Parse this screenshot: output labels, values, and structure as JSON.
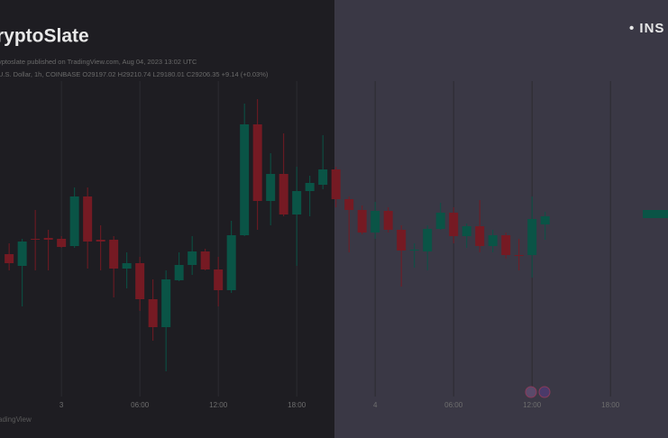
{
  "chart_data": {
    "type": "candlestick",
    "title": "ryptoSlate",
    "subtitle": "yptoslate published on TradingView.com, Aug 04, 2023 13:02 UTC",
    "symbol_info": "U.S. Dollar, 1h, COINBASE O29197.02 H29210.74 L29180.01 C29206.35 +9.14 (+0.03%)",
    "corner_text": "• INS",
    "watermark": "adingView",
    "x": [
      -4,
      -3,
      -2,
      -1,
      0,
      1,
      2,
      3,
      4,
      5,
      6,
      7,
      8,
      9,
      10,
      11,
      12,
      13,
      14,
      15,
      16,
      17,
      18,
      19,
      20,
      21,
      22,
      23,
      24,
      25,
      26,
      27,
      28,
      29,
      30,
      31,
      32,
      33,
      34,
      35,
      36,
      37
    ],
    "open": [
      29164,
      29151,
      29181,
      29182,
      29181,
      29173,
      29228,
      29180,
      29180,
      29148,
      29154,
      29114,
      29083,
      29135,
      29152,
      29167,
      29147,
      29124,
      29185,
      29308,
      29223,
      29253,
      29208,
      29234,
      29241,
      29258,
      29225,
      29213,
      29188,
      29212,
      29191,
      29168,
      29167,
      29192,
      29210,
      29184,
      29195,
      29173,
      29185,
      29163,
      29163,
      29197
    ],
    "high": [
      29176,
      29181,
      29213,
      29191,
      29184,
      29238,
      29238,
      29196,
      29184,
      29166,
      29161,
      29136,
      29146,
      29166,
      29184,
      29170,
      29161,
      29201,
      29331,
      29336,
      29276,
      29298,
      29261,
      29251,
      29296,
      29261,
      29228,
      29218,
      29222,
      29216,
      29196,
      29176,
      29196,
      29221,
      29216,
      29198,
      29224,
      29191,
      29188,
      29181,
      29228,
      29211
    ],
    "low": [
      29146,
      29106,
      29146,
      29146,
      29171,
      29171,
      29148,
      29146,
      29116,
      29126,
      29101,
      29068,
      29034,
      29134,
      29141,
      29146,
      29106,
      29121,
      29184,
      29191,
      29196,
      29206,
      29151,
      29206,
      29236,
      29216,
      29166,
      29186,
      29181,
      29188,
      29128,
      29149,
      29146,
      29191,
      29176,
      29171,
      29166,
      29166,
      29159,
      29146,
      29138,
      29180
    ],
    "close": [
      29154,
      29178,
      29180,
      29180,
      29172,
      29228,
      29178,
      29178,
      29148,
      29154,
      29114,
      29083,
      29136,
      29152,
      29167,
      29147,
      29124,
      29185,
      29308,
      29223,
      29253,
      29208,
      29234,
      29243,
      29258,
      29225,
      29213,
      29188,
      29212,
      29191,
      29168,
      29169,
      29192,
      29210,
      29184,
      29195,
      29173,
      29185,
      29163,
      29162,
      29203,
      29206
    ],
    "up_color": "#0a5446",
    "down_color": "#751a23",
    "xlim": [
      -4.7,
      46.4
    ],
    "ylim": [
      29006,
      29346
    ],
    "xticks": [
      {
        "value": 0,
        "label": "3"
      },
      {
        "value": 6,
        "label": "06:00"
      },
      {
        "value": 12,
        "label": "12:00"
      },
      {
        "value": 18,
        "label": "18:00"
      },
      {
        "value": 24,
        "label": "4"
      },
      {
        "value": 30,
        "label": "06:00"
      },
      {
        "value": 36,
        "label": "12:00"
      },
      {
        "value": 42,
        "label": "18:00"
      }
    ],
    "grid": true
  }
}
